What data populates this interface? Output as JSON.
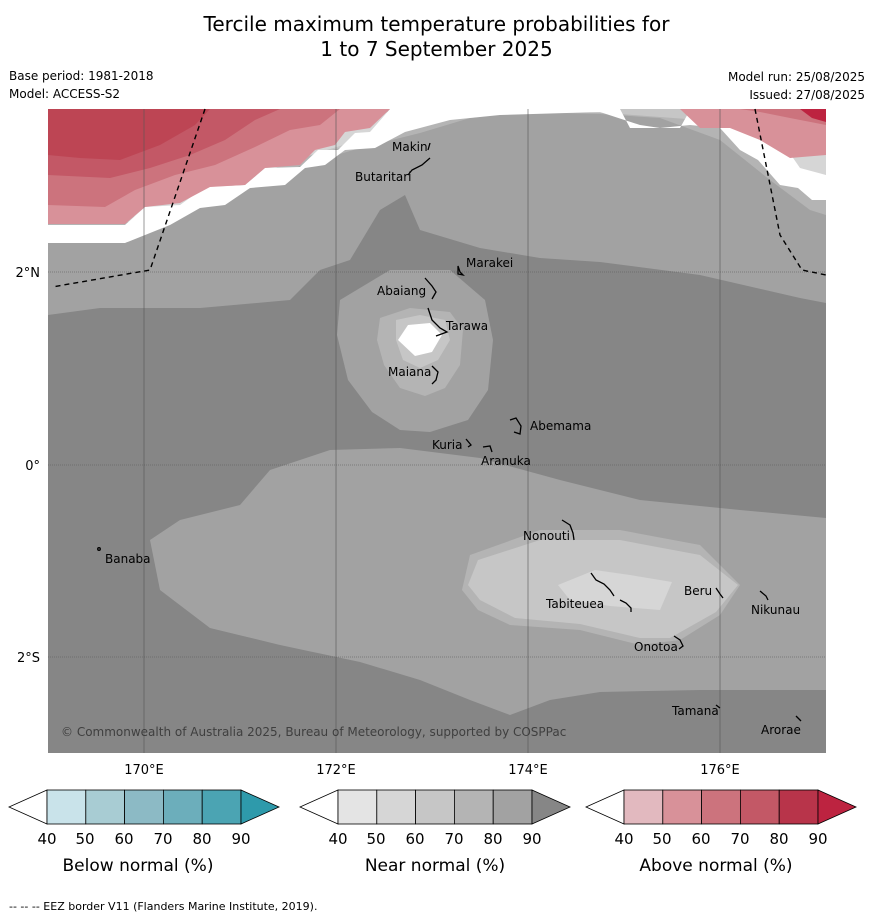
{
  "title_line1": "Tercile maximum temperature probabilities for",
  "title_line2": "1 to 7 September 2025",
  "base_period": "Base period: 1981-2018",
  "model": "Model: ACCESS-S2",
  "model_run": "Model run: 25/08/2025",
  "issued": "Issued: 27/08/2025",
  "copyright": "© Commonwealth of Australia 2025, Bureau of Meteorology, supported by COSPPac",
  "footer": "-- -- -- EEZ border V11 (Flanders Marine Institute, 2019).",
  "map": {
    "lon_ticks": [
      "170°E",
      "172°E",
      "174°E",
      "176°E"
    ],
    "lat_ticks": [
      "2°N",
      "0°",
      "2°S"
    ],
    "places": [
      "Makin",
      "Butaritari",
      "Marakei",
      "Abaiang",
      "Tarawa",
      "Maiana",
      "Abemama",
      "Kuria",
      "Aranuka",
      "Nonouti",
      "Banaba",
      "Tabiteuea",
      "Beru",
      "Nikunau",
      "Onotoa",
      "Tamana",
      "Arorae"
    ]
  },
  "colorbars": [
    {
      "label": "Below normal (%)",
      "ticks": [
        "40",
        "50",
        "60",
        "70",
        "80",
        "90"
      ],
      "colors": [
        "#ffffff",
        "#c9e3ea",
        "#a8ccd3",
        "#8cbac5",
        "#6caebb",
        "#4ba4b3",
        "#2e9aab"
      ]
    },
    {
      "label": "Near normal (%)",
      "ticks": [
        "40",
        "50",
        "60",
        "70",
        "80",
        "90"
      ],
      "colors": [
        "#ffffff",
        "#e4e4e4",
        "#d6d6d6",
        "#c6c6c6",
        "#b4b4b4",
        "#a2a2a2",
        "#868686"
      ]
    },
    {
      "label": "Above normal (%)",
      "ticks": [
        "40",
        "50",
        "60",
        "70",
        "80",
        "90"
      ],
      "colors": [
        "#ffffff",
        "#e2b9bf",
        "#d89199",
        "#cc737d",
        "#c35866",
        "#b8344a",
        "#bd2340"
      ]
    }
  ]
}
